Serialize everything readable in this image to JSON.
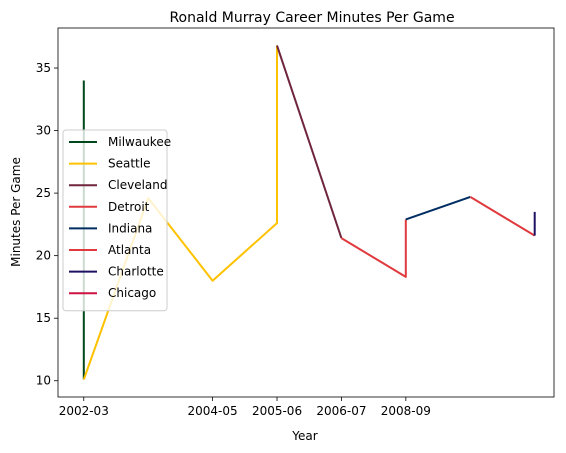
{
  "chart_data": {
    "type": "line",
    "title": "Ronald Murray Career Minutes Per Game",
    "xlabel": "Year",
    "ylabel": "Minutes Per Game",
    "x_ticks": [
      "2002-03",
      "2004-05",
      "2005-06",
      "2006-07",
      "2008-09"
    ],
    "x_tick_positions": [
      0,
      2,
      3,
      4,
      5
    ],
    "xlim": [
      -0.4,
      7.3
    ],
    "ylim": [
      8.7,
      38.2
    ],
    "y_ticks": [
      10,
      15,
      20,
      25,
      30,
      35
    ],
    "grid": false,
    "legend_position": "center-left",
    "series": [
      {
        "name": "Milwaukee",
        "color": "#00471B",
        "points": [
          [
            0,
            34.0
          ],
          [
            0,
            10.1
          ]
        ]
      },
      {
        "name": "Seattle",
        "color": "#FFC200",
        "points": [
          [
            0,
            10.1
          ],
          [
            1,
            24.6
          ],
          [
            2,
            18.0
          ],
          [
            3,
            22.6
          ],
          [
            3,
            36.8
          ]
        ]
      },
      {
        "name": "Cleveland",
        "color": "#6F263D",
        "points": [
          [
            3,
            36.8
          ],
          [
            4,
            21.4
          ]
        ]
      },
      {
        "name": "Detroit",
        "color": "#E03A3E",
        "points": [
          [
            4,
            21.4
          ],
          [
            5,
            18.3
          ],
          [
            5,
            22.9
          ]
        ]
      },
      {
        "name": "Indiana",
        "color": "#002D62",
        "points": [
          [
            5,
            22.9
          ],
          [
            6,
            24.7
          ]
        ]
      },
      {
        "name": "Atlanta",
        "color": "#E03A3E",
        "points": [
          [
            6,
            24.7
          ],
          [
            7,
            21.6
          ]
        ]
      },
      {
        "name": "Charlotte",
        "color": "#1D1160",
        "points": [
          [
            7,
            21.6
          ],
          [
            7,
            23.5
          ]
        ]
      },
      {
        "name": "Chicago",
        "color": "#CE1141",
        "points": []
      }
    ]
  }
}
